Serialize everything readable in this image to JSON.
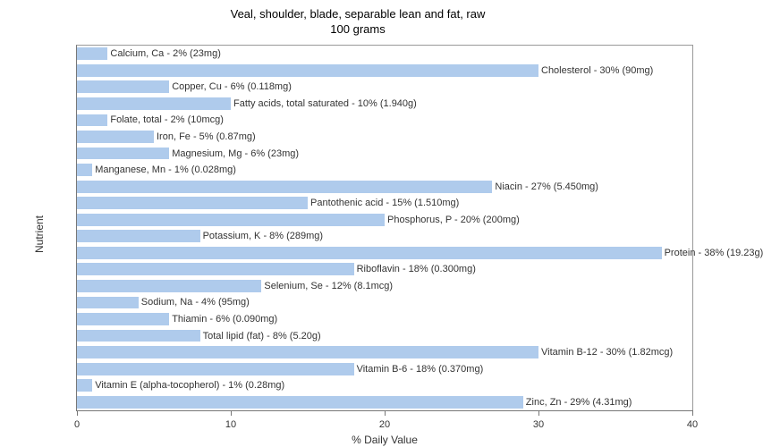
{
  "title_line1": "Veal, shoulder, blade, separable lean and fat, raw",
  "title_line2": "100 grams",
  "x_axis_label": "% Daily Value",
  "y_axis_label": "Nutrient",
  "chart": {
    "type": "bar",
    "orientation": "horizontal",
    "xlim": [
      0,
      40
    ],
    "xticks": [
      0,
      10,
      20,
      30,
      40
    ],
    "bar_color": "#afcbec",
    "background_color": "#ffffff",
    "border_color": "#999999",
    "label_fontsize": 11,
    "title_fontsize": 13,
    "axis_label_fontsize": 12,
    "bar_fill_ratio": 0.75
  },
  "nutrients": [
    {
      "label": "Calcium, Ca - 2% (23mg)",
      "value": 2
    },
    {
      "label": "Cholesterol - 30% (90mg)",
      "value": 30
    },
    {
      "label": "Copper, Cu - 6% (0.118mg)",
      "value": 6
    },
    {
      "label": "Fatty acids, total saturated - 10% (1.940g)",
      "value": 10
    },
    {
      "label": "Folate, total - 2% (10mcg)",
      "value": 2
    },
    {
      "label": "Iron, Fe - 5% (0.87mg)",
      "value": 5
    },
    {
      "label": "Magnesium, Mg - 6% (23mg)",
      "value": 6
    },
    {
      "label": "Manganese, Mn - 1% (0.028mg)",
      "value": 1
    },
    {
      "label": "Niacin - 27% (5.450mg)",
      "value": 27
    },
    {
      "label": "Pantothenic acid - 15% (1.510mg)",
      "value": 15
    },
    {
      "label": "Phosphorus, P - 20% (200mg)",
      "value": 20
    },
    {
      "label": "Potassium, K - 8% (289mg)",
      "value": 8
    },
    {
      "label": "Protein - 38% (19.23g)",
      "value": 38
    },
    {
      "label": "Riboflavin - 18% (0.300mg)",
      "value": 18
    },
    {
      "label": "Selenium, Se - 12% (8.1mcg)",
      "value": 12
    },
    {
      "label": "Sodium, Na - 4% (95mg)",
      "value": 4
    },
    {
      "label": "Thiamin - 6% (0.090mg)",
      "value": 6
    },
    {
      "label": "Total lipid (fat) - 8% (5.20g)",
      "value": 8
    },
    {
      "label": "Vitamin B-12 - 30% (1.82mcg)",
      "value": 30
    },
    {
      "label": "Vitamin B-6 - 18% (0.370mg)",
      "value": 18
    },
    {
      "label": "Vitamin E (alpha-tocopherol) - 1% (0.28mg)",
      "value": 1
    },
    {
      "label": "Zinc, Zn - 29% (4.31mg)",
      "value": 29
    }
  ]
}
